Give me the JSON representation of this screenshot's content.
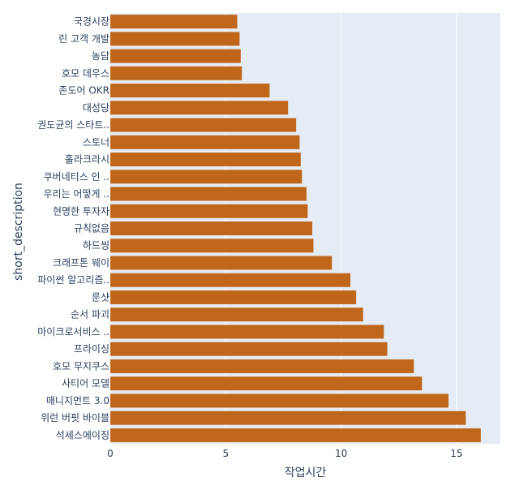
{
  "chart_data": {
    "type": "bar",
    "orientation": "horizontal",
    "categories": [
      "국경시장",
      "린 고객 개발",
      "농담",
      "호모 데우스",
      "존도어 OKR",
      "대성당",
      "권도균의 스타트..",
      "스토너",
      "홀라크라시",
      "쿠버네티스 인 ..",
      "우리는 어떻게 ..",
      "현명한 투자자",
      "규칙없음",
      "하드씽",
      "크래프톤 웨이",
      "파이썬 알고리즘..",
      "룬샷",
      "순서 파괴",
      "마이크로서비스 ..",
      "프라이싱",
      "호모 무지쿠스",
      "사티어 모델",
      "매니지먼트 3.0",
      "위런 버핏 바이블",
      "석세스에이징"
    ],
    "values": [
      5.5,
      5.6,
      5.65,
      5.7,
      6.9,
      7.7,
      8.05,
      8.2,
      8.25,
      8.3,
      8.5,
      8.55,
      8.75,
      8.8,
      9.6,
      10.4,
      10.65,
      10.95,
      11.85,
      12.0,
      13.15,
      13.5,
      14.65,
      15.4,
      16.05
    ],
    "xlabel": "작업시간",
    "ylabel": "short_description",
    "xlim": [
      0,
      16.9
    ],
    "xticks": [
      0,
      5,
      10,
      15
    ],
    "grid": true,
    "legend": "none",
    "colors": {
      "bar": "#c0661a",
      "plot_background": "#e5ecf6",
      "grid": "#ffffff",
      "text": "#2a3f5f"
    }
  }
}
